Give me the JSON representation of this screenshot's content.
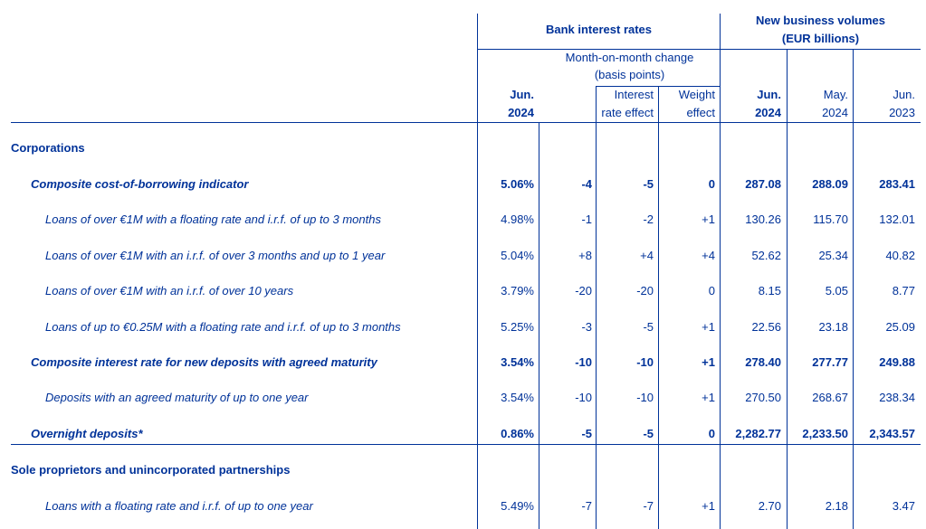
{
  "header": {
    "bank_rates": "Bank interest rates",
    "volumes_line1": "New business volumes",
    "volumes_line2": "(EUR billions)",
    "mom_line1": "Month-on-month change",
    "mom_line2": "(basis points)",
    "col_jun24_a": "Jun.",
    "col_jun24_b": "2024",
    "col_ire_a": "Interest",
    "col_ire_b": "rate effect",
    "col_we_a": "Weight",
    "col_we_b": "effect",
    "col_vjun24_a": "Jun.",
    "col_vjun24_b": "2024",
    "col_may24_a": "May.",
    "col_may24_b": "2024",
    "col_jun23_a": "Jun.",
    "col_jun23_b": "2023"
  },
  "sections": {
    "corporations": "Corporations",
    "sole": "Sole proprietors and unincorporated partnerships"
  },
  "rows": [
    {
      "label": "Composite cost-of-borrowing indicator",
      "rate": "5.06%",
      "mom": "-4",
      "ire": "-5",
      "we": "0",
      "v1": "287.08",
      "v2": "288.09",
      "v3": "283.41"
    },
    {
      "label": "Loans of over €1M with a floating rate and i.r.f. of up to 3 months",
      "rate": "4.98%",
      "mom": "-1",
      "ire": "-2",
      "we": "+1",
      "v1": "130.26",
      "v2": "115.70",
      "v3": "132.01"
    },
    {
      "label": "Loans of over €1M with an i.r.f. of over 3 months and up to 1 year",
      "rate": "5.04%",
      "mom": "+8",
      "ire": "+4",
      "we": "+4",
      "v1": "52.62",
      "v2": "25.34",
      "v3": "40.82"
    },
    {
      "label": "Loans of over €1M with an i.r.f. of over 10 years",
      "rate": "3.79%",
      "mom": "-20",
      "ire": "-20",
      "we": "0",
      "v1": "8.15",
      "v2": "5.05",
      "v3": "8.77"
    },
    {
      "label": "Loans of up to €0.25M with a floating rate and i.r.f. of up to 3 months",
      "rate": "5.25%",
      "mom": "-3",
      "ire": "-5",
      "we": "+1",
      "v1": "22.56",
      "v2": "23.18",
      "v3": "25.09"
    },
    {
      "label": "Composite interest rate for new deposits with agreed maturity",
      "rate": "3.54%",
      "mom": "-10",
      "ire": "-10",
      "we": "+1",
      "v1": "278.40",
      "v2": "277.77",
      "v3": "249.88"
    },
    {
      "label": "Deposits with an agreed maturity of up to one year",
      "rate": "3.54%",
      "mom": "-10",
      "ire": "-10",
      "we": "+1",
      "v1": "270.50",
      "v2": "268.67",
      "v3": "238.34"
    },
    {
      "label": "Overnight deposits*",
      "rate": "0.86%",
      "mom": "-5",
      "ire": "-5",
      "we": "0",
      "v1": "2,282.77",
      "v2": "2,233.50",
      "v3": "2,343.57"
    },
    {
      "label": "Loans with a floating rate and i.r.f. of up to one year",
      "rate": "5.49%",
      "mom": "-7",
      "ire": "-7",
      "we": "+1",
      "v1": "2.70",
      "v2": "2.18",
      "v3": "3.47"
    }
  ]
}
